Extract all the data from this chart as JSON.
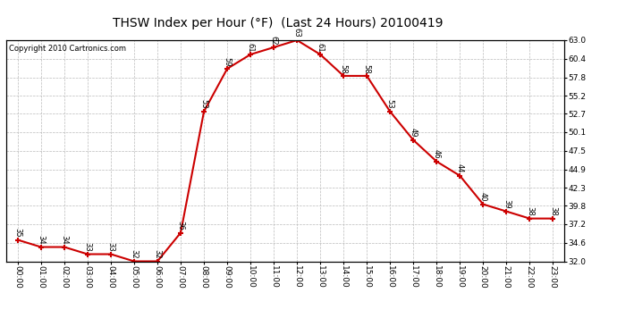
{
  "title": "THSW Index per Hour (°F)  (Last 24 Hours) 20100419",
  "copyright": "Copyright 2010 Cartronics.com",
  "hours": [
    "00:00",
    "01:00",
    "02:00",
    "03:00",
    "04:00",
    "05:00",
    "06:00",
    "07:00",
    "08:00",
    "09:00",
    "10:00",
    "11:00",
    "12:00",
    "13:00",
    "14:00",
    "15:00",
    "16:00",
    "17:00",
    "18:00",
    "19:00",
    "20:00",
    "21:00",
    "22:00",
    "23:00"
  ],
  "values": [
    35,
    34,
    34,
    33,
    33,
    32,
    32,
    36,
    53,
    59,
    61,
    62,
    63,
    61,
    58,
    58,
    53,
    49,
    46,
    44,
    40,
    39,
    38,
    38
  ],
  "ylim_min": 32.0,
  "ylim_max": 63.0,
  "yticks": [
    32.0,
    34.6,
    37.2,
    39.8,
    42.3,
    44.9,
    47.5,
    50.1,
    52.7,
    55.2,
    57.8,
    60.4,
    63.0
  ],
  "line_color": "#cc0000",
  "marker_color": "#cc0000",
  "bg_color": "#ffffff",
  "grid_color": "#bbbbbb",
  "title_fontsize": 10,
  "label_fontsize": 6,
  "tick_fontsize": 6.5,
  "copyright_fontsize": 6
}
